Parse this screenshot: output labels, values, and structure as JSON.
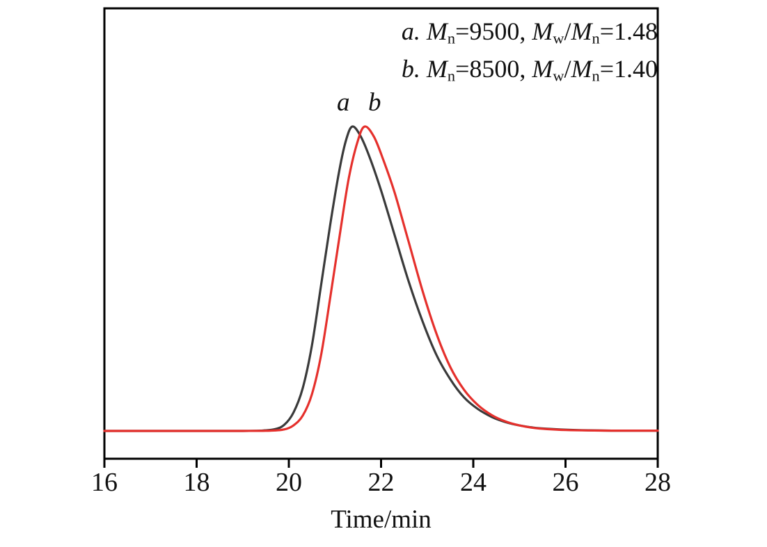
{
  "figure": {
    "peak_labels": {
      "a": "a",
      "b": "b"
    },
    "colors": {
      "series_a": "#3a3a3a",
      "series_b": "#e5302c",
      "axis": "#000000",
      "background": "#ffffff"
    }
  },
  "annotations": [
    {
      "name": "annotation-series-a",
      "segments": [
        [
          "a. ",
          "i"
        ],
        [
          "M",
          "i"
        ],
        [
          "n",
          "sub"
        ],
        [
          "=9500, ",
          ""
        ],
        [
          "M",
          "i"
        ],
        [
          "w",
          "sub"
        ],
        [
          "/",
          ""
        ],
        [
          "M",
          "i"
        ],
        [
          "n",
          "sub"
        ],
        [
          "=1.48",
          ""
        ]
      ]
    },
    {
      "name": "annotation-series-b",
      "segments": [
        [
          "b. ",
          "i"
        ],
        [
          "M",
          "i"
        ],
        [
          "n",
          "sub"
        ],
        [
          "=8500, ",
          ""
        ],
        [
          "M",
          "i"
        ],
        [
          "w",
          "sub"
        ],
        [
          "/",
          ""
        ],
        [
          "M",
          "i"
        ],
        [
          "n",
          "sub"
        ],
        [
          "=1.40",
          ""
        ]
      ]
    }
  ],
  "chart_data": {
    "type": "line",
    "title": "",
    "xlabel": "Time/min",
    "ylabel": "",
    "xlim": [
      16,
      28
    ],
    "ylim": [
      0,
      1.1
    ],
    "x_ticks": [
      16,
      18,
      20,
      22,
      24,
      26,
      28
    ],
    "y_ticks": [],
    "grid": false,
    "legend_position": "top-right",
    "series": [
      {
        "name": "a",
        "color": "#3a3a3a",
        "Mn": 9500,
        "Mw_over_Mn": 1.48,
        "peak_time_min": 21.4,
        "points": [
          [
            16,
            0
          ],
          [
            17,
            0
          ],
          [
            18,
            0
          ],
          [
            19,
            0
          ],
          [
            19.4,
            0.001
          ],
          [
            19.7,
            0.006
          ],
          [
            19.9,
            0.02
          ],
          [
            20.1,
            0.06
          ],
          [
            20.3,
            0.14
          ],
          [
            20.5,
            0.28
          ],
          [
            20.7,
            0.48
          ],
          [
            20.9,
            0.68
          ],
          [
            21.1,
            0.86
          ],
          [
            21.25,
            0.96
          ],
          [
            21.38,
            1.0
          ],
          [
            21.55,
            0.97
          ],
          [
            21.75,
            0.9
          ],
          [
            22.0,
            0.79
          ],
          [
            22.3,
            0.64
          ],
          [
            22.6,
            0.49
          ],
          [
            22.9,
            0.36
          ],
          [
            23.2,
            0.25
          ],
          [
            23.5,
            0.17
          ],
          [
            23.8,
            0.11
          ],
          [
            24.1,
            0.072
          ],
          [
            24.4,
            0.046
          ],
          [
            24.7,
            0.029
          ],
          [
            25.0,
            0.018
          ],
          [
            25.3,
            0.011
          ],
          [
            25.6,
            0.007
          ],
          [
            26.0,
            0.004
          ],
          [
            26.5,
            0.002
          ],
          [
            27.0,
            0.001
          ],
          [
            27.5,
            0.001
          ],
          [
            28,
            0.001
          ]
        ]
      },
      {
        "name": "b",
        "color": "#e5302c",
        "Mn": 8500,
        "Mw_over_Mn": 1.4,
        "peak_time_min": 21.65,
        "points": [
          [
            16,
            0
          ],
          [
            17,
            0
          ],
          [
            18,
            0
          ],
          [
            19,
            0
          ],
          [
            19.6,
            0.001
          ],
          [
            19.9,
            0.005
          ],
          [
            20.1,
            0.018
          ],
          [
            20.3,
            0.05
          ],
          [
            20.5,
            0.12
          ],
          [
            20.7,
            0.25
          ],
          [
            20.9,
            0.44
          ],
          [
            21.1,
            0.64
          ],
          [
            21.3,
            0.83
          ],
          [
            21.5,
            0.955
          ],
          [
            21.65,
            1.0
          ],
          [
            21.85,
            0.965
          ],
          [
            22.05,
            0.89
          ],
          [
            22.3,
            0.78
          ],
          [
            22.6,
            0.62
          ],
          [
            22.9,
            0.46
          ],
          [
            23.2,
            0.32
          ],
          [
            23.5,
            0.21
          ],
          [
            23.8,
            0.135
          ],
          [
            24.1,
            0.085
          ],
          [
            24.4,
            0.052
          ],
          [
            24.7,
            0.031
          ],
          [
            25.0,
            0.018
          ],
          [
            25.3,
            0.01
          ],
          [
            25.6,
            0.006
          ],
          [
            26.0,
            0.003
          ],
          [
            26.5,
            0.0015
          ],
          [
            27.0,
            0.001
          ],
          [
            27.5,
            0.001
          ],
          [
            28,
            0.001
          ]
        ]
      }
    ]
  }
}
